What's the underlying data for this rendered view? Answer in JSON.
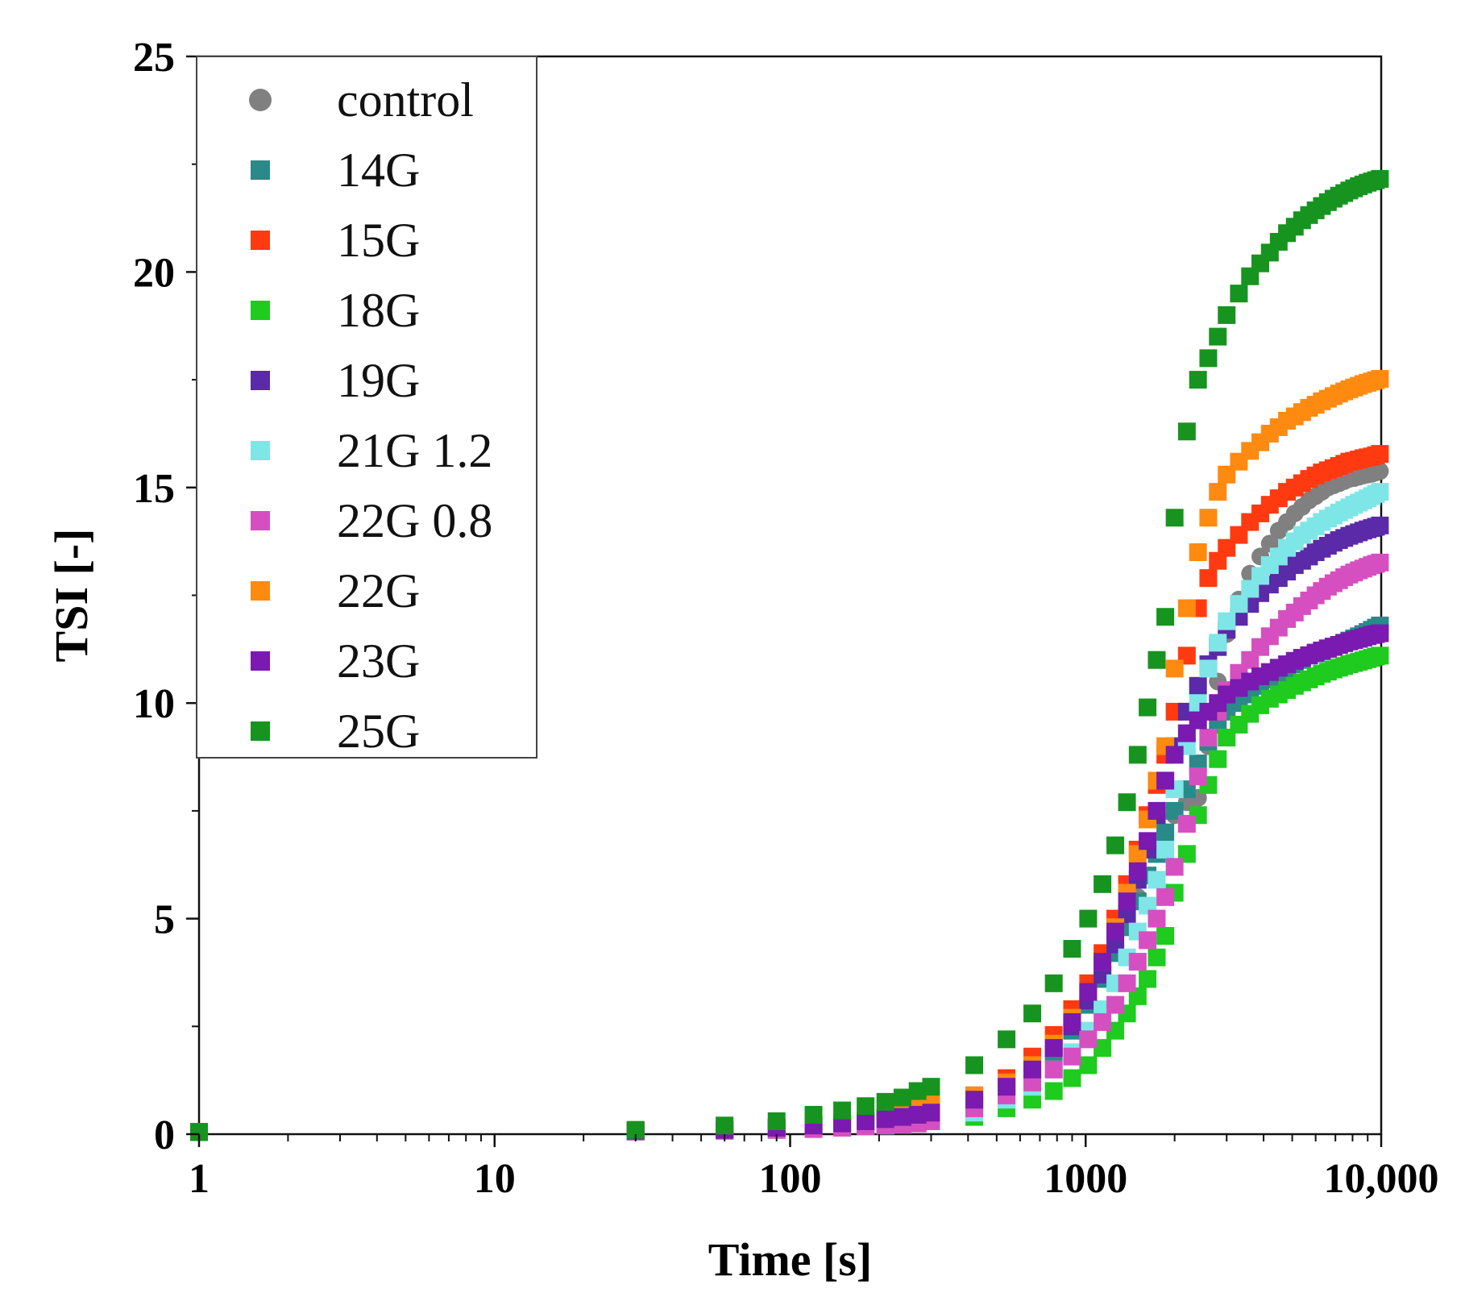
{
  "chart_data": {
    "type": "scatter",
    "title": "",
    "xlabel": "Time [s]",
    "ylabel": "TSI [-]",
    "xscale": "log",
    "xlim": [
      1,
      10000
    ],
    "ylim": [
      0,
      25
    ],
    "x_ticks": [
      {
        "value": 1,
        "label": "1"
      },
      {
        "value": 10,
        "label": "10"
      },
      {
        "value": 100,
        "label": "100"
      },
      {
        "value": 1000,
        "label": "1000"
      },
      {
        "value": 10000,
        "label": "10,000"
      }
    ],
    "y_ticks": [
      {
        "value": 0,
        "label": "0"
      },
      {
        "value": 5,
        "label": "5"
      },
      {
        "value": 10,
        "label": "10"
      },
      {
        "value": 15,
        "label": "15"
      },
      {
        "value": 20,
        "label": "20"
      },
      {
        "value": 25,
        "label": "25"
      }
    ],
    "legend_position": "top-left",
    "grid": false,
    "x": [
      1,
      30,
      60,
      90,
      120,
      150,
      180,
      210,
      240,
      270,
      300,
      420,
      540,
      660,
      780,
      900,
      1020,
      1140,
      1260,
      1380,
      1500,
      1620,
      1740,
      1860,
      2000,
      2200,
      2400,
      2600,
      2800,
      3000,
      3300,
      3600,
      3900,
      4200,
      4500,
      4800,
      5100,
      5400,
      5700,
      6000,
      6300,
      6600,
      6900,
      7200,
      7500,
      7800,
      8100,
      8400,
      8700,
      9000,
      9300,
      9600,
      9900
    ],
    "series": [
      {
        "name": "control",
        "marker": "circle",
        "color": "#808080",
        "values": [
          0.05,
          0.08,
          0.1,
          0.15,
          0.2,
          0.25,
          0.3,
          0.35,
          0.4,
          0.45,
          0.5,
          0.8,
          1.2,
          1.6,
          2.1,
          2.6,
          3.1,
          3.7,
          4.3,
          4.9,
          5.5,
          6.0,
          6.5,
          7.0,
          7.4,
          7.7,
          7.8,
          9.0,
          10.5,
          11.6,
          12.4,
          13.0,
          13.4,
          13.7,
          14.0,
          14.2,
          14.4,
          14.55,
          14.7,
          14.8,
          14.9,
          15.0,
          15.05,
          15.1,
          15.15,
          15.2,
          15.22,
          15.25,
          15.28,
          15.3,
          15.32,
          15.35,
          15.38
        ]
      },
      {
        "name": "14G",
        "marker": "square",
        "color": "#2a8a8a",
        "values": [
          0.05,
          0.08,
          0.1,
          0.15,
          0.2,
          0.25,
          0.3,
          0.35,
          0.4,
          0.45,
          0.5,
          0.7,
          1.0,
          1.4,
          1.9,
          2.4,
          3.0,
          3.6,
          4.2,
          4.8,
          5.4,
          6.0,
          6.5,
          7.0,
          7.5,
          8.0,
          8.6,
          9.1,
          9.5,
          9.8,
          10.0,
          10.2,
          10.4,
          10.55,
          10.7,
          10.8,
          10.9,
          11.0,
          11.1,
          11.15,
          11.2,
          11.25,
          11.3,
          11.35,
          11.4,
          11.45,
          11.5,
          11.55,
          11.6,
          11.65,
          11.7,
          11.75,
          11.8
        ]
      },
      {
        "name": "15G",
        "marker": "square",
        "color": "#ff3a10",
        "values": [
          0.05,
          0.08,
          0.1,
          0.15,
          0.2,
          0.25,
          0.3,
          0.35,
          0.4,
          0.45,
          0.5,
          0.9,
          1.3,
          1.8,
          2.3,
          2.9,
          3.5,
          4.2,
          5.0,
          5.8,
          6.6,
          7.4,
          8.1,
          8.8,
          9.8,
          11.1,
          12.2,
          12.9,
          13.3,
          13.6,
          13.9,
          14.2,
          14.4,
          14.6,
          14.75,
          14.9,
          15.0,
          15.1,
          15.2,
          15.28,
          15.35,
          15.4,
          15.45,
          15.5,
          15.55,
          15.6,
          15.62,
          15.65,
          15.68,
          15.7,
          15.72,
          15.75,
          15.78
        ]
      },
      {
        "name": "18G",
        "marker": "square",
        "color": "#1ecb1e",
        "values": [
          0.05,
          0.06,
          0.08,
          0.1,
          0.12,
          0.15,
          0.18,
          0.2,
          0.22,
          0.25,
          0.3,
          0.4,
          0.6,
          0.8,
          1.0,
          1.3,
          1.6,
          2.0,
          2.4,
          2.8,
          3.2,
          3.6,
          4.1,
          4.6,
          5.6,
          6.5,
          7.4,
          8.1,
          8.7,
          9.2,
          9.5,
          9.75,
          9.95,
          10.1,
          10.2,
          10.3,
          10.4,
          10.48,
          10.55,
          10.62,
          10.68,
          10.73,
          10.78,
          10.82,
          10.86,
          10.9,
          10.93,
          10.96,
          10.99,
          11.02,
          11.05,
          11.08,
          11.1
        ]
      },
      {
        "name": "19G",
        "marker": "square",
        "color": "#5a2aa8",
        "values": [
          0.05,
          0.08,
          0.1,
          0.15,
          0.2,
          0.25,
          0.3,
          0.35,
          0.4,
          0.45,
          0.5,
          0.8,
          1.1,
          1.5,
          2.0,
          2.5,
          3.1,
          3.7,
          4.4,
          5.1,
          5.9,
          6.6,
          7.4,
          8.2,
          9.0,
          9.8,
          10.4,
          10.9,
          11.3,
          11.7,
          12.0,
          12.3,
          12.55,
          12.75,
          12.9,
          13.05,
          13.2,
          13.3,
          13.4,
          13.5,
          13.58,
          13.65,
          13.72,
          13.78,
          13.83,
          13.88,
          13.92,
          13.96,
          14.0,
          14.03,
          14.06,
          14.09,
          14.12
        ]
      },
      {
        "name": "21G 1.2",
        "marker": "square",
        "color": "#7ee6e6",
        "values": [
          0.05,
          0.06,
          0.08,
          0.1,
          0.12,
          0.15,
          0.18,
          0.2,
          0.22,
          0.25,
          0.3,
          0.5,
          0.8,
          1.1,
          1.5,
          1.9,
          2.4,
          2.9,
          3.5,
          4.1,
          4.7,
          5.3,
          5.9,
          6.6,
          8.0,
          9.0,
          10.0,
          10.8,
          11.4,
          11.9,
          12.3,
          12.65,
          12.95,
          13.2,
          13.4,
          13.6,
          13.75,
          13.9,
          14.0,
          14.1,
          14.2,
          14.28,
          14.35,
          14.42,
          14.48,
          14.54,
          14.6,
          14.65,
          14.7,
          14.75,
          14.8,
          14.85,
          14.9
        ]
      },
      {
        "name": "22G 0.8",
        "marker": "square",
        "color": "#d64fc0",
        "values": [
          0.05,
          0.06,
          0.08,
          0.1,
          0.12,
          0.15,
          0.18,
          0.2,
          0.22,
          0.25,
          0.3,
          0.6,
          0.9,
          1.2,
          1.5,
          1.8,
          2.2,
          2.6,
          3.0,
          3.5,
          4.0,
          4.5,
          5.0,
          5.5,
          6.2,
          7.2,
          8.3,
          9.2,
          9.8,
          10.3,
          10.7,
          11.0,
          11.3,
          11.55,
          11.75,
          11.95,
          12.1,
          12.25,
          12.38,
          12.5,
          12.6,
          12.7,
          12.78,
          12.85,
          12.92,
          12.98,
          13.03,
          13.08,
          13.12,
          13.16,
          13.2,
          13.23,
          13.26
        ]
      },
      {
        "name": "22G",
        "marker": "square",
        "color": "#ff8a10",
        "values": [
          0.05,
          0.08,
          0.1,
          0.15,
          0.2,
          0.25,
          0.3,
          0.4,
          0.5,
          0.6,
          0.7,
          0.9,
          1.2,
          1.6,
          2.1,
          2.7,
          3.3,
          4.0,
          4.8,
          5.6,
          6.5,
          7.3,
          8.2,
          9.0,
          10.8,
          12.2,
          13.5,
          14.3,
          14.9,
          15.3,
          15.6,
          15.85,
          16.05,
          16.25,
          16.4,
          16.55,
          16.65,
          16.75,
          16.85,
          16.92,
          17.0,
          17.06,
          17.12,
          17.18,
          17.23,
          17.28,
          17.32,
          17.36,
          17.4,
          17.43,
          17.46,
          17.49,
          17.52
        ]
      },
      {
        "name": "23G",
        "marker": "square",
        "color": "#7a1ab0",
        "values": [
          0.05,
          0.08,
          0.1,
          0.15,
          0.2,
          0.25,
          0.3,
          0.35,
          0.4,
          0.45,
          0.5,
          0.8,
          1.1,
          1.5,
          2.0,
          2.6,
          3.3,
          4.0,
          4.7,
          5.4,
          6.1,
          6.8,
          7.5,
          8.2,
          8.8,
          9.3,
          9.6,
          9.8,
          10.0,
          10.2,
          10.35,
          10.5,
          10.62,
          10.72,
          10.82,
          10.9,
          10.98,
          11.05,
          11.11,
          11.17,
          11.22,
          11.27,
          11.31,
          11.35,
          11.39,
          11.43,
          11.46,
          11.49,
          11.52,
          11.55,
          11.58,
          11.6,
          11.62
        ]
      },
      {
        "name": "25G",
        "marker": "square",
        "color": "#17941f",
        "values": [
          0.05,
          0.1,
          0.2,
          0.3,
          0.45,
          0.55,
          0.65,
          0.75,
          0.85,
          1.0,
          1.1,
          1.6,
          2.2,
          2.8,
          3.5,
          4.3,
          5.0,
          5.8,
          6.7,
          7.7,
          8.8,
          9.9,
          11.0,
          12.0,
          14.3,
          16.3,
          17.5,
          18.0,
          18.5,
          19.0,
          19.5,
          19.9,
          20.2,
          20.45,
          20.7,
          20.9,
          21.05,
          21.2,
          21.32,
          21.43,
          21.53,
          21.62,
          21.7,
          21.77,
          21.83,
          21.89,
          21.94,
          21.99,
          22.03,
          22.07,
          22.1,
          22.13,
          22.16
        ]
      }
    ]
  }
}
